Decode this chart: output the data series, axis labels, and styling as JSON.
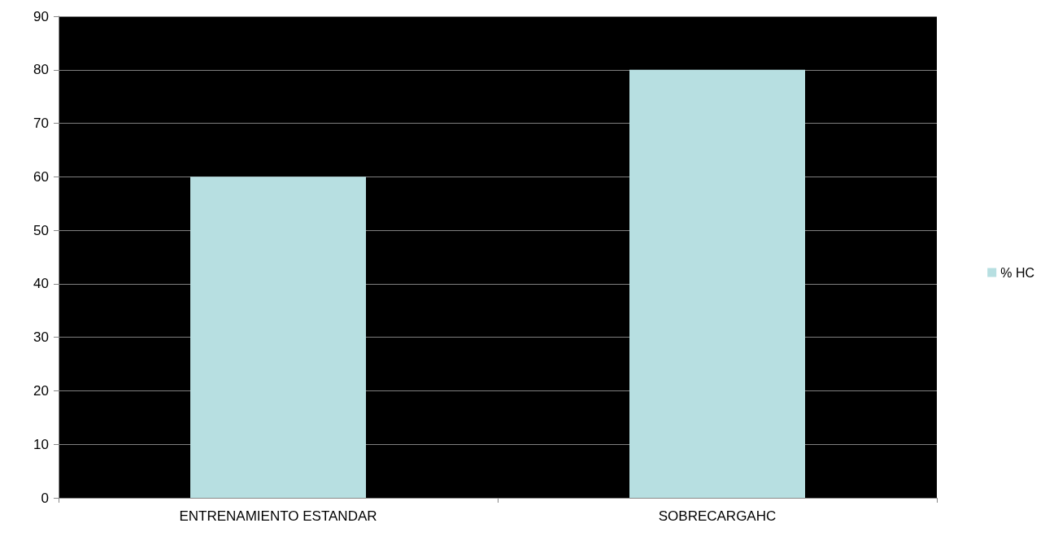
{
  "chart_data": {
    "type": "bar",
    "categories": [
      "ENTRENAMIENTO ESTANDAR",
      "SOBRECARGAHC"
    ],
    "series": [
      {
        "name": "% HC",
        "color": "#b7dfe1",
        "values": [
          60,
          80
        ]
      }
    ],
    "ylim": [
      0,
      90
    ],
    "yticks": [
      0,
      10,
      20,
      30,
      40,
      50,
      60,
      70,
      80,
      90
    ],
    "grid": "y",
    "legend": "right"
  }
}
